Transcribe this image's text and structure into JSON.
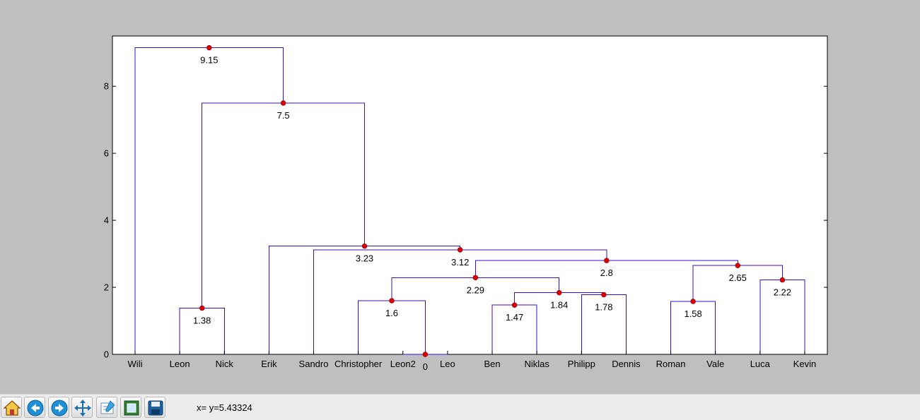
{
  "chart_data": {
    "type": "dendrogram",
    "leaves": [
      "Wili",
      "Leon",
      "Nick",
      "Erik",
      "Sandro",
      "Christopher",
      "Leon2",
      "Leo",
      "Ben",
      "Niklas",
      "Philipp",
      "Dennis",
      "Roman",
      "Vale",
      "Luca",
      "Kevin"
    ],
    "ylim": [
      0,
      9.5
    ],
    "yticks": [
      0,
      2,
      4,
      6,
      8
    ],
    "merges": [
      {
        "height": 0,
        "label": "0",
        "left": "Leon2",
        "right": "Leo",
        "left_height": 0,
        "right_height": 0
      },
      {
        "height": 1.38,
        "label": "1.38",
        "left": "Leon",
        "right": "Nick",
        "left_height": 0,
        "right_height": 0
      },
      {
        "height": 1.47,
        "label": "1.47",
        "left": "Ben",
        "right": "Niklas",
        "left_height": 0,
        "right_height": 0
      },
      {
        "height": 1.58,
        "label": "1.58",
        "left": "Roman",
        "right": "Vale",
        "left_height": 0,
        "right_height": 0
      },
      {
        "height": 1.6,
        "label": "1.6",
        "left": "Christopher",
        "right": "Leon2+Leo",
        "left_height": 0,
        "right_height": 0
      },
      {
        "height": 1.78,
        "label": "1.78",
        "left": "Philipp",
        "right": "Dennis",
        "left_height": 0,
        "right_height": 0
      },
      {
        "height": 1.84,
        "label": "1.84",
        "left": "Ben+Niklas",
        "right": "Philipp+Dennis",
        "left_height": 1.47,
        "right_height": 1.78
      },
      {
        "height": 2.22,
        "label": "2.22",
        "left": "Luca",
        "right": "Kevin",
        "left_height": 0,
        "right_height": 0
      },
      {
        "height": 2.29,
        "label": "2.29",
        "left": "Christopher+Leon2+Leo",
        "right": "Ben+Niklas+Philipp+Dennis",
        "left_height": 1.6,
        "right_height": 1.84
      },
      {
        "height": 2.65,
        "label": "2.65",
        "left": "Roman+Vale",
        "right": "Luca+Kevin",
        "left_height": 1.58,
        "right_height": 2.22
      },
      {
        "height": 2.8,
        "label": "2.8",
        "left": "2.29 cluster",
        "right": "2.65 cluster",
        "left_height": 2.29,
        "right_height": 2.65
      },
      {
        "height": 3.12,
        "label": "3.12",
        "left": "Sandro",
        "right": "2.8 cluster",
        "left_height": 0,
        "right_height": 2.8
      },
      {
        "height": 3.23,
        "label": "3.23",
        "left": "Erik",
        "right": "3.12 cluster",
        "left_height": 0,
        "right_height": 3.12
      },
      {
        "height": 7.5,
        "label": "7.5",
        "left": "Leon+Nick",
        "right": "3.23 cluster",
        "left_height": 1.38,
        "right_height": 3.23
      },
      {
        "height": 9.15,
        "label": "9.15",
        "left": "Wili",
        "right": "7.5 cluster",
        "left_height": 0,
        "right_height": 7.5
      }
    ],
    "line_color": "#3b0bd6",
    "node_color": "#e00000",
    "grid": false
  },
  "toolbar": {
    "buttons": [
      "home-icon",
      "back-icon",
      "forward-icon",
      "pan-icon",
      "configure-subplots-icon",
      "zoom-rect-icon",
      "save-icon"
    ]
  },
  "status": {
    "coord_readout": "x= y=5.43324"
  }
}
